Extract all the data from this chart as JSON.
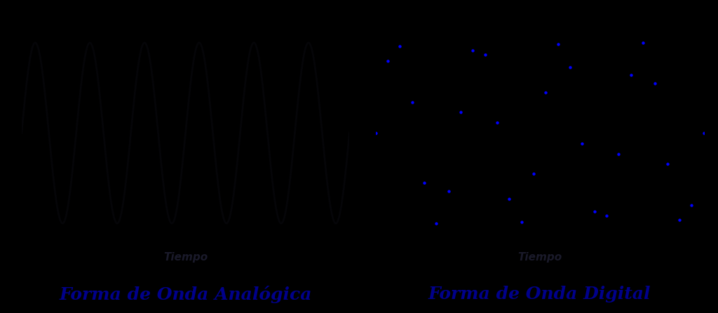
{
  "bg_color": "#000000",
  "analog_wave_color": "#050508",
  "digital_dot_color": "#0000ff",
  "spine_color": "#000000",
  "title_color": "#00008B",
  "xlabel_color": "#1a1a2a",
  "left_title": "Forma de Onda Analógica",
  "right_title": "Forma de Onda Digital",
  "xlabel": "Tiempo",
  "title_fontsize": 18,
  "xlabel_fontsize": 11,
  "num_analog_points": 1000,
  "num_digital_samples": 28,
  "analog_freq": 1.5,
  "digital_freq": 1.0,
  "x_range": [
    0,
    4
  ],
  "y_range": [
    -1.3,
    1.3
  ]
}
